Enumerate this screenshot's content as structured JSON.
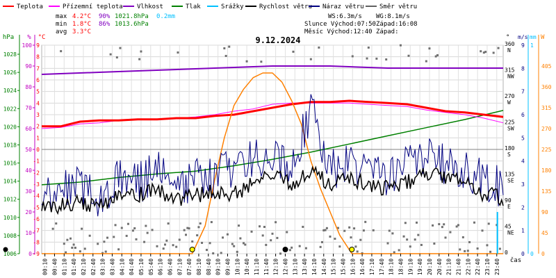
{
  "chart_data": {
    "type": "line",
    "title": "9.12.2024",
    "x_label": "čas",
    "x_ticks": [
      "00:10",
      "00:40",
      "01:10",
      "01:40",
      "02:10",
      "02:40",
      "03:10",
      "03:40",
      "04:10",
      "04:40",
      "05:10",
      "05:40",
      "06:10",
      "06:40",
      "07:10",
      "07:40",
      "08:10",
      "08:40",
      "09:10",
      "09:40",
      "10:10",
      "10:40",
      "11:10",
      "11:40",
      "12:10",
      "12:40",
      "13:10",
      "13:40",
      "14:10",
      "14:40",
      "15:10",
      "15:40",
      "16:10",
      "16:40",
      "17:10",
      "17:40",
      "18:10",
      "18:40",
      "19:10",
      "19:40",
      "20:10",
      "20:40",
      "21:10",
      "21:40",
      "22:10",
      "22:40",
      "23:10",
      "23:40"
    ],
    "axes": {
      "pressure": {
        "label": "hPa",
        "ticks": [
          "1028",
          "1026",
          "1024",
          "1022",
          "1020",
          "1018",
          "1016",
          "1014",
          "1012",
          "1010",
          "1008",
          "1006"
        ],
        "range": [
          1006,
          1029
        ]
      },
      "humidity": {
        "label": "%",
        "ticks": [
          "100",
          "90",
          "80",
          "70",
          "60",
          "50",
          "40",
          "30",
          "20",
          "10",
          "0"
        ],
        "range": [
          0,
          100
        ]
      },
      "temperature": {
        "label": "°C",
        "ticks": [
          "9",
          "8",
          "7",
          "6",
          "5",
          "4",
          "3",
          "2",
          "1",
          "0",
          "-1",
          "-2",
          "-3",
          "-4",
          "-5",
          "-6",
          "-7",
          "-8",
          "-9"
        ],
        "range": [
          -9,
          9
        ]
      },
      "wind_dir": {
        "label": "°",
        "ticks": [
          [
            "360",
            "N"
          ],
          [
            "315",
            "NW"
          ],
          [
            "270",
            "W"
          ],
          [
            "225",
            "SW"
          ],
          [
            "180",
            "S"
          ],
          [
            "135",
            "SE"
          ],
          [
            "90",
            "E"
          ],
          [
            "45",
            "NE"
          ],
          [
            "0",
            ""
          ]
        ]
      },
      "wind_speed": {
        "label": "m/s",
        "ticks": [
          "9",
          "8",
          "7",
          "6",
          "5",
          "4",
          "3",
          "2",
          "1",
          "0"
        ]
      },
      "rain": {
        "label": "mm",
        "ticks": [
          "1",
          "0"
        ]
      },
      "solar": {
        "label": "W",
        "ticks": [
          "405",
          "360",
          "315",
          "270",
          "225",
          "180",
          "135",
          "90",
          "45",
          "0"
        ]
      }
    },
    "legend": [
      {
        "name": "Teplota",
        "color": "#ff0000"
      },
      {
        "name": "Přízemní teplota",
        "color": "#ff00ff"
      },
      {
        "name": "Vlhkost",
        "color": "#8000c0"
      },
      {
        "name": "Tlak",
        "color": "#008000"
      },
      {
        "name": "Srážky",
        "color": "#00c0ff"
      },
      {
        "name": "Rychlost větru",
        "color": "#000000"
      },
      {
        "name": "Náraz větru",
        "color": "#000080"
      },
      {
        "name": "Směr větru",
        "color": "#606060"
      }
    ],
    "stats": {
      "max": {
        "label": "max",
        "temp": "4.2°C",
        "hum": "90%",
        "press": "1021.8hPa",
        "rain": "0.2mm"
      },
      "min": {
        "label": "min",
        "temp": "1.8°C",
        "hum": "86%",
        "press": "1013.6hPa"
      },
      "avg": {
        "label": "avg",
        "temp": "3.3°C"
      }
    },
    "info": {
      "ws": "WS:6.3m/s",
      "wg": "WG:8.1m/s",
      "sunrise": "Slunce Východ:07:50",
      "sunset": "Západ:16:08",
      "moonrise": "Měsíc  Východ:12:40",
      "moonset": "Západ:"
    },
    "series": {
      "temperature": [
        [
          0,
          2.0
        ],
        [
          1,
          2.0
        ],
        [
          2,
          2.4
        ],
        [
          3,
          2.5
        ],
        [
          4,
          2.5
        ],
        [
          5,
          2.6
        ],
        [
          6,
          2.6
        ],
        [
          7,
          2.7
        ],
        [
          8,
          2.7
        ],
        [
          9,
          2.9
        ],
        [
          10,
          3.0
        ],
        [
          11,
          3.3
        ],
        [
          12,
          3.6
        ],
        [
          13,
          3.9
        ],
        [
          14,
          4.1
        ],
        [
          15,
          4.1
        ],
        [
          16,
          4.2
        ],
        [
          17,
          4.1
        ],
        [
          18,
          4.0
        ],
        [
          19,
          3.9
        ],
        [
          20,
          3.6
        ],
        [
          21,
          3.3
        ],
        [
          22,
          3.2
        ],
        [
          23,
          3.0
        ],
        [
          24,
          2.8
        ]
      ],
      "ground_temperature": [
        [
          0,
          1.8
        ],
        [
          1,
          1.9
        ],
        [
          2,
          2.2
        ],
        [
          3,
          2.3
        ],
        [
          4,
          2.5
        ],
        [
          5,
          2.6
        ],
        [
          6,
          2.6
        ],
        [
          7,
          2.7
        ],
        [
          8,
          2.8
        ],
        [
          9,
          3.0
        ],
        [
          10,
          3.3
        ],
        [
          11,
          3.5
        ],
        [
          12,
          3.9
        ],
        [
          13,
          4.0
        ],
        [
          14,
          4.0
        ],
        [
          15,
          4.0
        ],
        [
          16,
          4.0
        ],
        [
          17,
          3.9
        ],
        [
          18,
          3.8
        ],
        [
          19,
          3.7
        ],
        [
          20,
          3.4
        ],
        [
          21,
          3.2
        ],
        [
          22,
          3.0
        ],
        [
          23,
          2.7
        ],
        [
          24,
          2.3
        ]
      ],
      "humidity": [
        [
          0,
          86
        ],
        [
          3,
          87
        ],
        [
          6,
          88
        ],
        [
          9,
          89
        ],
        [
          12,
          90
        ],
        [
          15,
          90
        ],
        [
          18,
          89
        ],
        [
          21,
          89
        ],
        [
          24,
          89
        ]
      ],
      "pressure": [
        [
          0,
          1013.6
        ],
        [
          2,
          1013.9
        ],
        [
          4,
          1014.4
        ],
        [
          6,
          1014.8
        ],
        [
          8,
          1015.1
        ],
        [
          10,
          1015.7
        ],
        [
          12,
          1016.4
        ],
        [
          14,
          1017.2
        ],
        [
          16,
          1018.1
        ],
        [
          18,
          1019.0
        ],
        [
          20,
          1019.9
        ],
        [
          22,
          1020.8
        ],
        [
          24,
          1021.8
        ]
      ],
      "wind_speed_avg": [
        [
          0,
          2.0
        ],
        [
          1,
          2.1
        ],
        [
          2,
          2.2
        ],
        [
          3,
          2.0
        ],
        [
          4,
          2.6
        ],
        [
          5,
          2.5
        ],
        [
          6,
          2.8
        ],
        [
          7,
          2.3
        ],
        [
          8,
          2.5
        ],
        [
          9,
          2.7
        ],
        [
          10,
          2.6
        ],
        [
          11,
          3.0
        ],
        [
          12,
          3.4
        ],
        [
          13,
          3.0
        ],
        [
          14,
          3.6
        ],
        [
          15,
          3.0
        ],
        [
          16,
          3.2
        ],
        [
          17,
          3.0
        ],
        [
          18,
          2.8
        ],
        [
          19,
          3.1
        ],
        [
          20,
          3.4
        ],
        [
          21,
          3.3
        ],
        [
          22,
          3.0
        ],
        [
          23,
          2.6
        ],
        [
          24,
          2.4
        ]
      ],
      "wind_gust": [
        [
          0,
          2.4
        ],
        [
          1,
          2.8
        ],
        [
          2,
          3.0
        ],
        [
          3,
          2.2
        ],
        [
          4,
          3.5
        ],
        [
          5,
          3.0
        ],
        [
          6,
          3.6
        ],
        [
          7,
          2.7
        ],
        [
          8,
          3.2
        ],
        [
          9,
          3.3
        ],
        [
          10,
          3.8
        ],
        [
          11,
          4.0
        ],
        [
          12,
          4.5
        ],
        [
          13,
          3.6
        ],
        [
          14,
          6.3
        ],
        [
          15,
          3.6
        ],
        [
          16,
          3.9
        ],
        [
          17,
          3.6
        ],
        [
          18,
          3.3
        ],
        [
          19,
          4.0
        ],
        [
          20,
          4.3
        ],
        [
          21,
          3.8
        ],
        [
          22,
          3.6
        ],
        [
          23,
          3.2
        ],
        [
          24,
          2.8
        ]
      ],
      "solar_radiation": [
        [
          0,
          0
        ],
        [
          7.83,
          0
        ],
        [
          8.5,
          60
        ],
        [
          9,
          160
        ],
        [
          9.5,
          250
        ],
        [
          10,
          320
        ],
        [
          10.5,
          355
        ],
        [
          11,
          380
        ],
        [
          11.5,
          390
        ],
        [
          12,
          390
        ],
        [
          12.5,
          370
        ],
        [
          13,
          330
        ],
        [
          13.5,
          280
        ],
        [
          14,
          200
        ],
        [
          14.5,
          140
        ],
        [
          15,
          90
        ],
        [
          15.5,
          40
        ],
        [
          16.13,
          0
        ],
        [
          24,
          0
        ]
      ],
      "rain": [
        [
          23.7,
          0.2
        ]
      ]
    },
    "markers": {
      "sunrise_hour": 7.83,
      "sunset_hour": 16.13,
      "moonrise_hour": 12.67
    }
  }
}
